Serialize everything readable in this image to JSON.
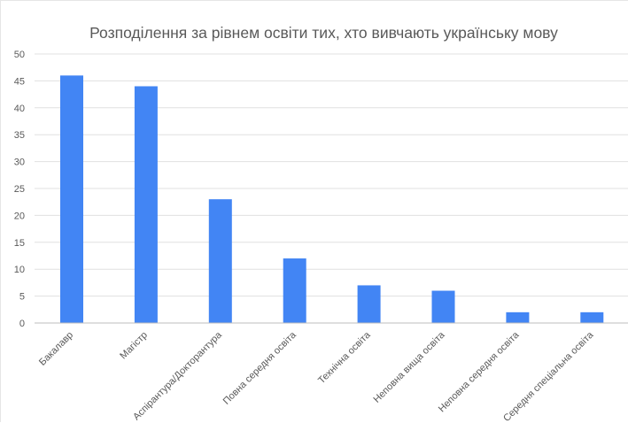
{
  "chart_data": {
    "type": "bar",
    "title": "Розподілення за рівнем освіти тих, хто вивчають українську мову",
    "xlabel": "",
    "ylabel": "",
    "ylim": [
      0,
      50
    ],
    "yticks": [
      0,
      5,
      10,
      15,
      20,
      25,
      30,
      35,
      40,
      45,
      50
    ],
    "grid": true,
    "legend": "none",
    "categories": [
      "Бакалавр",
      "Магістр",
      "Аспірантура/Докторантура",
      "Повна середня освіта",
      "Технічна освіта",
      "Неповна вища освіта",
      "Неповна середня освіта",
      "Середня спеціальна освіта"
    ],
    "values": [
      46,
      44,
      23,
      12,
      7,
      6,
      2,
      2
    ],
    "colors": {
      "bar": "#4285f4",
      "grid": "#e0e0e0",
      "axis": "#bdbdbd",
      "text": "#595959"
    }
  }
}
